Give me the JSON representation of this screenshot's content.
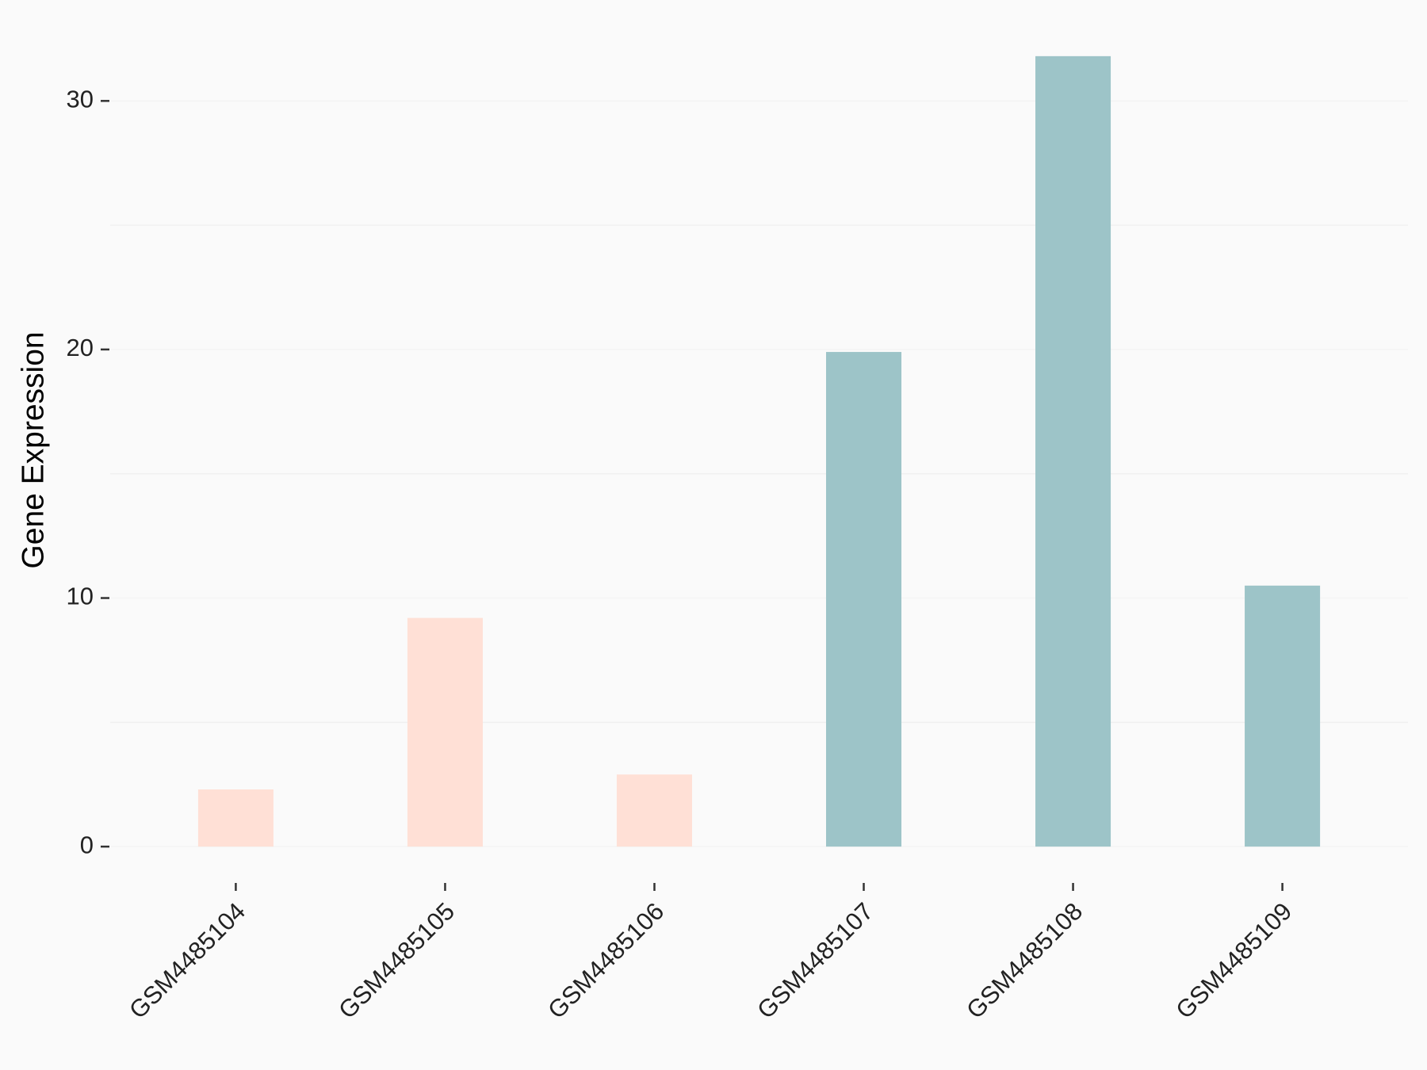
{
  "chart_data": {
    "type": "bar",
    "y_label": "Gene Expression",
    "categories": [
      "GSM4485104",
      "GSM4485105",
      "GSM4485106",
      "GSM4485107",
      "GSM4485108",
      "GSM4485109"
    ],
    "values": [
      2.3,
      9.2,
      2.9,
      19.9,
      31.8,
      10.5
    ],
    "colors": [
      "#ffe0d6",
      "#ffe0d6",
      "#ffe0d6",
      "#9dc4c8",
      "#9dc4c8",
      "#9dc4c8"
    ],
    "ylim": [
      -1.59,
      33.39
    ],
    "yticks": [
      0,
      10,
      20,
      30
    ],
    "y_minor_ticks": [
      5,
      15,
      25
    ],
    "grid": true
  }
}
